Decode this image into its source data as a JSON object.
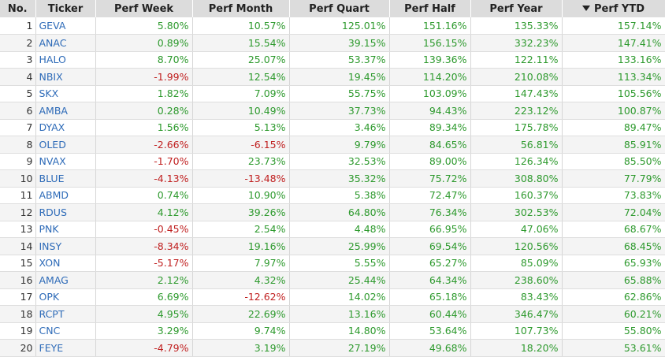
{
  "table": {
    "columns": [
      "No.",
      "Ticker",
      "Perf Week",
      "Perf Month",
      "Perf Quart",
      "Perf Half",
      "Perf Year",
      "Perf YTD"
    ],
    "sorted_column": "Perf YTD",
    "sort_direction": "descending",
    "colors": {
      "positive": "#2e9a2e",
      "negative": "#c02020",
      "ticker_link": "#2e6bb8",
      "header_bg": "#dcdcdc"
    },
    "rows": [
      [
        "1",
        "GEVA",
        "5.80%",
        "10.57%",
        "125.01%",
        "151.16%",
        "135.33%",
        "157.14%"
      ],
      [
        "2",
        "ANAC",
        "0.89%",
        "15.54%",
        "39.15%",
        "156.15%",
        "332.23%",
        "147.41%"
      ],
      [
        "3",
        "HALO",
        "8.70%",
        "25.07%",
        "53.37%",
        "139.36%",
        "122.11%",
        "133.16%"
      ],
      [
        "4",
        "NBIX",
        "-1.99%",
        "12.54%",
        "19.45%",
        "114.20%",
        "210.08%",
        "113.34%"
      ],
      [
        "5",
        "SKX",
        "1.82%",
        "7.09%",
        "55.75%",
        "103.09%",
        "147.43%",
        "105.56%"
      ],
      [
        "6",
        "AMBA",
        "0.28%",
        "10.49%",
        "37.73%",
        "94.43%",
        "223.12%",
        "100.87%"
      ],
      [
        "7",
        "DYAX",
        "1.56%",
        "5.13%",
        "3.46%",
        "89.34%",
        "175.78%",
        "89.47%"
      ],
      [
        "8",
        "OLED",
        "-2.66%",
        "-6.15%",
        "9.79%",
        "84.65%",
        "56.81%",
        "85.91%"
      ],
      [
        "9",
        "NVAX",
        "-1.70%",
        "23.73%",
        "32.53%",
        "89.00%",
        "126.34%",
        "85.50%"
      ],
      [
        "10",
        "BLUE",
        "-4.13%",
        "-13.48%",
        "35.32%",
        "75.72%",
        "308.80%",
        "77.79%"
      ],
      [
        "11",
        "ABMD",
        "0.74%",
        "10.90%",
        "5.38%",
        "72.47%",
        "160.37%",
        "73.83%"
      ],
      [
        "12",
        "RDUS",
        "4.12%",
        "39.26%",
        "64.80%",
        "76.34%",
        "302.53%",
        "72.04%"
      ],
      [
        "13",
        "PNK",
        "-0.45%",
        "2.54%",
        "4.48%",
        "66.95%",
        "47.06%",
        "68.67%"
      ],
      [
        "14",
        "INSY",
        "-8.34%",
        "19.16%",
        "25.99%",
        "69.54%",
        "120.56%",
        "68.45%"
      ],
      [
        "15",
        "XON",
        "-5.17%",
        "7.97%",
        "5.55%",
        "65.27%",
        "85.09%",
        "65.93%"
      ],
      [
        "16",
        "AMAG",
        "2.12%",
        "4.32%",
        "25.44%",
        "64.34%",
        "238.60%",
        "65.88%"
      ],
      [
        "17",
        "OPK",
        "6.69%",
        "-12.62%",
        "14.02%",
        "65.18%",
        "83.43%",
        "62.86%"
      ],
      [
        "18",
        "RCPT",
        "4.95%",
        "22.69%",
        "13.16%",
        "60.44%",
        "346.47%",
        "60.21%"
      ],
      [
        "19",
        "CNC",
        "3.29%",
        "9.74%",
        "14.80%",
        "53.64%",
        "107.73%",
        "55.80%"
      ],
      [
        "20",
        "FEYE",
        "-4.79%",
        "3.19%",
        "27.19%",
        "49.68%",
        "18.20%",
        "53.61%"
      ]
    ]
  }
}
